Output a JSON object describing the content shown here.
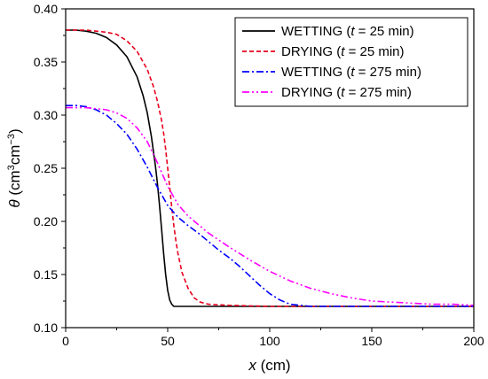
{
  "chart_data": {
    "type": "line",
    "xlabel": {
      "var": "x",
      "unit": " (cm)"
    },
    "ylabel": {
      "var": "θ",
      "unit_pre": " (cm",
      "sup1": "3",
      "mid": "cm",
      "sup2": "−3",
      "unit_post": ")"
    },
    "xlim": [
      0,
      200
    ],
    "ylim": [
      0.1,
      0.4
    ],
    "x_ticks": [
      "0",
      "50",
      "100",
      "150",
      "200"
    ],
    "y_ticks": [
      "0.10",
      "0.15",
      "0.20",
      "0.25",
      "0.30",
      "0.35",
      "0.40"
    ],
    "legend_position": "top-right",
    "grid": false,
    "series": [
      {
        "name": "WETTING (t = 25 min)",
        "legend": {
          "pre": "WETTING (",
          "var": "t",
          "post": " = 25 min)"
        },
        "color": "#000000",
        "dash": "solid",
        "x": [
          0,
          5,
          10,
          15,
          20,
          25,
          30,
          35,
          38,
          40,
          42,
          44,
          45,
          46,
          47,
          48,
          49,
          50,
          51,
          52,
          53,
          55,
          60,
          100,
          150,
          200
        ],
        "y": [
          0.38,
          0.38,
          0.379,
          0.377,
          0.373,
          0.366,
          0.355,
          0.336,
          0.318,
          0.302,
          0.28,
          0.252,
          0.235,
          0.215,
          0.193,
          0.17,
          0.15,
          0.135,
          0.126,
          0.122,
          0.12,
          0.12,
          0.12,
          0.12,
          0.12,
          0.12
        ]
      },
      {
        "name": "DRYING (t = 25 min)",
        "legend": {
          "pre": "DRYING (",
          "var": "t",
          "post": " = 25 min)"
        },
        "color": "#e8001c",
        "dash": "dashed",
        "x": [
          0,
          10,
          20,
          25,
          30,
          35,
          40,
          43,
          45,
          47,
          48,
          49,
          50,
          51,
          52,
          53,
          54,
          55,
          57,
          60,
          63,
          66,
          70,
          80,
          100,
          150,
          200
        ],
        "y": [
          0.38,
          0.38,
          0.378,
          0.376,
          0.37,
          0.36,
          0.343,
          0.327,
          0.313,
          0.295,
          0.283,
          0.268,
          0.25,
          0.232,
          0.213,
          0.196,
          0.182,
          0.17,
          0.152,
          0.137,
          0.128,
          0.124,
          0.122,
          0.121,
          0.12,
          0.12,
          0.12
        ]
      },
      {
        "name": "WETTING (t = 275 min)",
        "legend": {
          "pre": "WETTING (",
          "var": "t",
          "post": " = 275 min)"
        },
        "color": "#0000ff",
        "dash": "dashdot",
        "x": [
          0,
          5,
          10,
          15,
          20,
          25,
          30,
          35,
          40,
          45,
          50,
          55,
          60,
          65,
          70,
          75,
          80,
          85,
          90,
          95,
          100,
          105,
          110,
          115,
          120,
          130,
          140,
          150,
          200
        ],
        "y": [
          0.309,
          0.309,
          0.308,
          0.305,
          0.3,
          0.292,
          0.282,
          0.268,
          0.251,
          0.232,
          0.215,
          0.204,
          0.196,
          0.189,
          0.181,
          0.173,
          0.166,
          0.158,
          0.149,
          0.14,
          0.132,
          0.126,
          0.122,
          0.121,
          0.12,
          0.12,
          0.12,
          0.12,
          0.12
        ]
      },
      {
        "name": "DRYING (t = 275 min)",
        "legend": {
          "pre": "DRYING (",
          "var": "t",
          "post": " = 275 min)"
        },
        "color": "#ff00ff",
        "dash": "dashdotdot",
        "x": [
          0,
          10,
          20,
          25,
          30,
          35,
          40,
          45,
          50,
          55,
          60,
          70,
          80,
          90,
          100,
          110,
          120,
          130,
          140,
          150,
          160,
          170,
          180,
          190,
          200
        ],
        "y": [
          0.307,
          0.307,
          0.305,
          0.302,
          0.297,
          0.288,
          0.275,
          0.255,
          0.233,
          0.216,
          0.205,
          0.189,
          0.176,
          0.164,
          0.153,
          0.144,
          0.137,
          0.132,
          0.128,
          0.125,
          0.124,
          0.123,
          0.122,
          0.122,
          0.121
        ]
      }
    ]
  }
}
